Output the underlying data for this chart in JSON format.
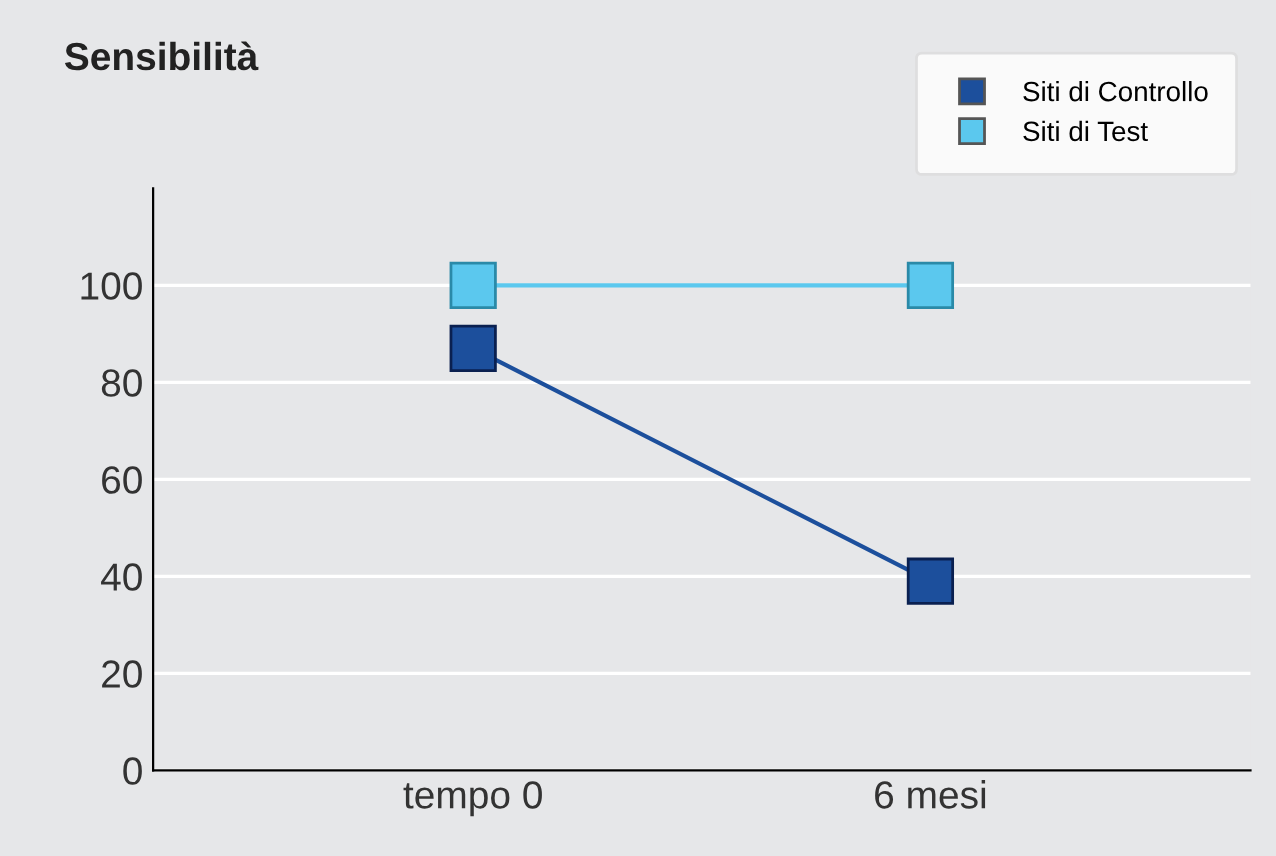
{
  "chart_data": {
    "type": "line",
    "title": "Sensibilità",
    "categories": [
      "tempo 0",
      "6 mesi"
    ],
    "series": [
      {
        "name": "Siti di Controllo",
        "color": "#1c4f9c",
        "values": [
          87,
          39
        ]
      },
      {
        "name": "Siti di Test",
        "color": "#5bc8ee",
        "values": [
          100,
          100
        ]
      }
    ],
    "ylim": [
      0,
      120
    ],
    "yticks": [
      0,
      20,
      40,
      60,
      80,
      100
    ],
    "grid": "y",
    "legend": "top right",
    "marker": "square",
    "line_style": "solid"
  }
}
